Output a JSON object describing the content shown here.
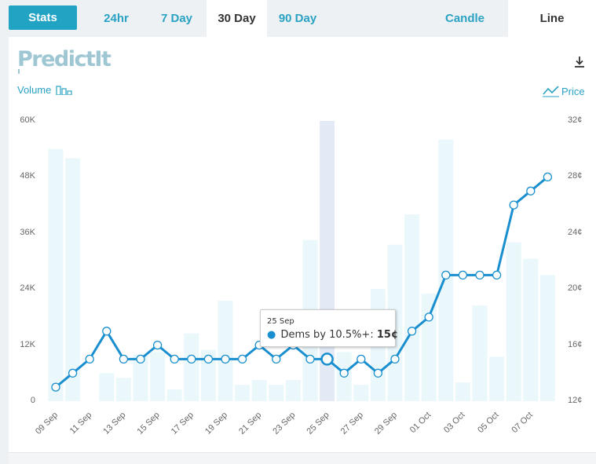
{
  "tabs": [
    {
      "label": "Stats"
    },
    {
      "label": "24hr"
    },
    {
      "label": "7 Day"
    },
    {
      "label": "30 Day"
    },
    {
      "label": "90 Day"
    },
    {
      "label": "Candle"
    },
    {
      "label": "Line"
    }
  ],
  "logo": "PredictIt",
  "legend": {
    "volume": "Volume",
    "price": "Price"
  },
  "tooltip": {
    "date": "25 Sep",
    "series": "Dems by 10.5%+:",
    "value": "15¢"
  },
  "colors": {
    "accent": "#21a3c4",
    "line": "#1a8fcf",
    "bar": "#eaf7fb",
    "bar_highlight": "#e3eaf6"
  },
  "chart_data": {
    "type": "line",
    "x": [
      "09 Sep",
      "10 Sep",
      "11 Sep",
      "12 Sep",
      "13 Sep",
      "14 Sep",
      "15 Sep",
      "16 Sep",
      "17 Sep",
      "18 Sep",
      "19 Sep",
      "20 Sep",
      "21 Sep",
      "22 Sep",
      "23 Sep",
      "24 Sep",
      "25 Sep",
      "26 Sep",
      "27 Sep",
      "28 Sep",
      "29 Sep",
      "30 Sep",
      "01 Oct",
      "02 Oct",
      "03 Oct",
      "04 Oct",
      "05 Oct",
      "06 Oct",
      "07 Oct",
      "08 Oct"
    ],
    "x_tick_labels": [
      "09 Sep",
      "11 Sep",
      "13 Sep",
      "15 Sep",
      "17 Sep",
      "19 Sep",
      "21 Sep",
      "23 Sep",
      "25 Sep",
      "27 Sep",
      "29 Sep",
      "01 Oct",
      "03 Oct",
      "05 Oct",
      "07 Oct"
    ],
    "series": [
      {
        "name": "Dems by 10.5%+",
        "axis": "right",
        "values": [
          13,
          14,
          15,
          17,
          15,
          15,
          16,
          15,
          15,
          15,
          15,
          15,
          16,
          15,
          16,
          15,
          15,
          14,
          15,
          14,
          15,
          17,
          18,
          21,
          21,
          21,
          21,
          26,
          27,
          28
        ]
      },
      {
        "axis": "left",
        "values": [
          54000,
          52000,
          0,
          6000,
          5000,
          10000,
          10500,
          2500,
          14500,
          11000,
          21500,
          3500,
          4500,
          3500,
          4500,
          34500,
          60000,
          10500,
          3500,
          24000,
          33500,
          40000,
          23000,
          56000,
          4000,
          20500,
          9500,
          34000,
          30500,
          27000
        ]
      }
    ],
    "left_axis": {
      "label": "Volume",
      "range": [
        0,
        60000
      ],
      "ticks": [
        "0",
        "12K",
        "24K",
        "36K",
        "48K",
        "60K"
      ]
    },
    "right_axis": {
      "label": "Price",
      "range": [
        12,
        32
      ],
      "ticks": [
        "12¢",
        "16¢",
        "20¢",
        "24¢",
        "28¢",
        "32¢"
      ]
    },
    "highlight": "25 Sep",
    "grid": false
  }
}
